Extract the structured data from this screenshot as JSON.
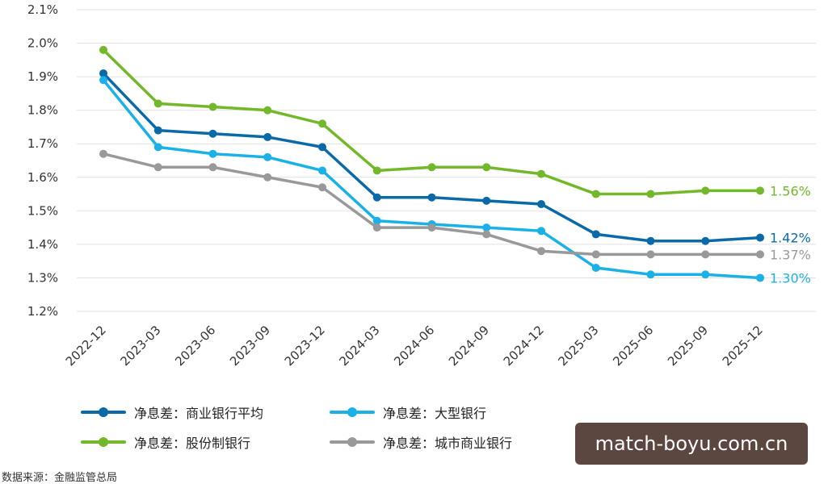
{
  "chart_data": {
    "type": "line",
    "categories": [
      "2022-12",
      "2023-03",
      "2023-06",
      "2023-09",
      "2023-12",
      "2024-03",
      "2024-06",
      "2024-09",
      "2024-12",
      "2025-03",
      "2025-06",
      "2025-09",
      "2025-12"
    ],
    "y_ticks": [
      "1.2%",
      "1.3%",
      "1.4%",
      "1.5%",
      "1.6%",
      "1.7%",
      "1.8%",
      "1.9%",
      "2.0%",
      "2.1%"
    ],
    "ylim": [
      1.2,
      2.1
    ],
    "grid": true,
    "legend_position": "bottom",
    "series": [
      {
        "name": "净息差：商业银行平均",
        "color": "#0a6aa8",
        "values": [
          1.91,
          1.74,
          1.73,
          1.72,
          1.69,
          1.54,
          1.54,
          1.53,
          1.52,
          1.43,
          1.41,
          1.41,
          1.42
        ],
        "end_label": "1.42%"
      },
      {
        "name": "净息差：大型银行",
        "color": "#1ab0e8",
        "values": [
          1.89,
          1.69,
          1.67,
          1.66,
          1.62,
          1.47,
          1.46,
          1.45,
          1.44,
          1.33,
          1.31,
          1.31,
          1.3
        ],
        "end_label": "1.30%"
      },
      {
        "name": "净息差：股份制银行",
        "color": "#72b82a",
        "values": [
          1.98,
          1.82,
          1.81,
          1.8,
          1.76,
          1.62,
          1.63,
          1.63,
          1.61,
          1.55,
          1.55,
          1.56,
          1.56
        ],
        "end_label": "1.56%"
      },
      {
        "name": "净息差：城市商业银行",
        "color": "#999999",
        "values": [
          1.67,
          1.63,
          1.63,
          1.6,
          1.57,
          1.45,
          1.45,
          1.43,
          1.38,
          1.37,
          1.37,
          1.37,
          1.37
        ],
        "end_label": "1.37%"
      }
    ]
  },
  "source": "数据来源：金融监管总局",
  "watermark": "match-boyu.com.cn"
}
